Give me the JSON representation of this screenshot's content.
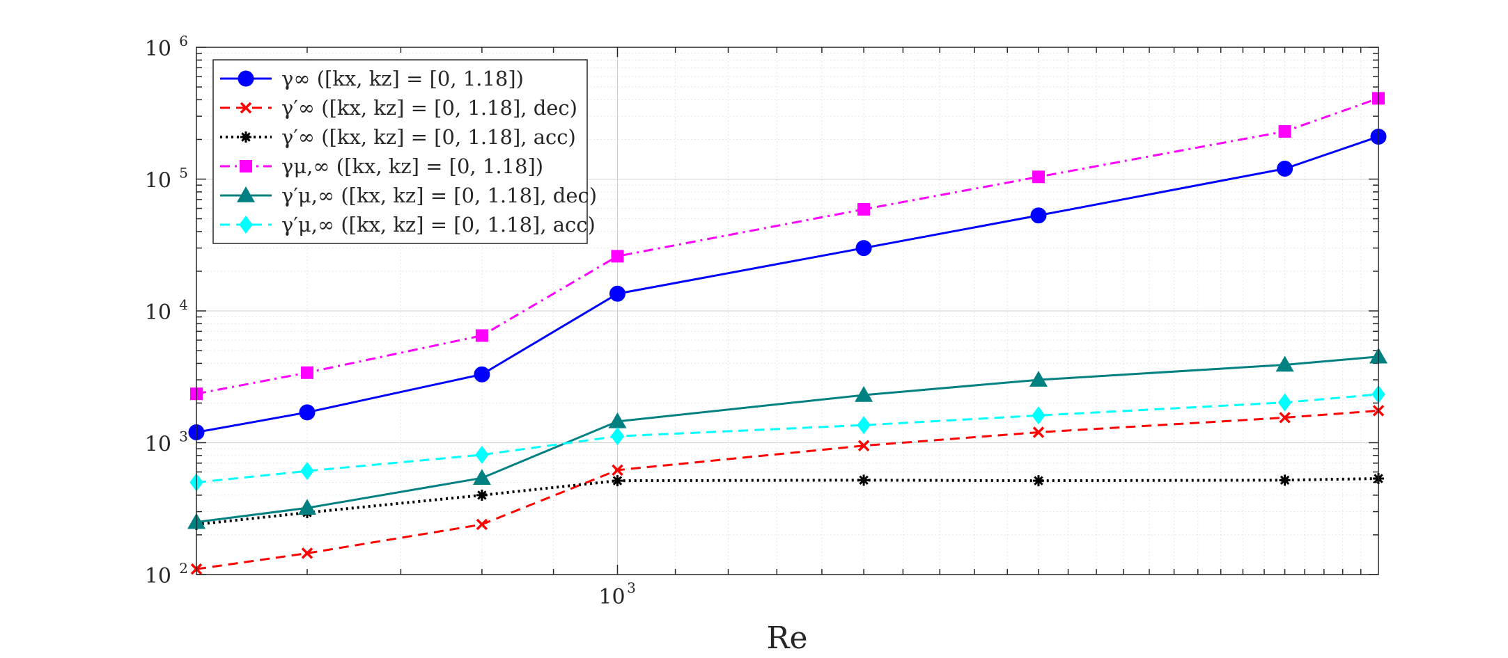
{
  "chart_data": {
    "type": "line",
    "xscale": "log",
    "yscale": "log",
    "xlim": [
      500,
      3500
    ],
    "ylim": [
      100,
      1000000
    ],
    "xlabel": "Re",
    "ylabel": "",
    "title": "",
    "grid": true,
    "minor_grid": true,
    "legend_position": "top-left",
    "x_ticks": [
      {
        "base": "10",
        "exp": "3",
        "value": 1000
      }
    ],
    "y_ticks": [
      {
        "base": "10",
        "exp": "2",
        "value": 100
      },
      {
        "base": "10",
        "exp": "3",
        "value": 1000
      },
      {
        "base": "10",
        "exp": "4",
        "value": 10000
      },
      {
        "base": "10",
        "exp": "5",
        "value": 100000
      },
      {
        "base": "10",
        "exp": "6",
        "value": 1000000
      }
    ],
    "x": [
      500,
      600,
      800,
      1000,
      1500,
      2000,
      3000,
      3500
    ],
    "series": [
      {
        "name": "γ∞ ([kx, kz] = [0, 1.18])",
        "color": "#0000ff",
        "dash": "solid",
        "marker": "circle",
        "values": [
          1200,
          1700,
          3300,
          13500,
          30000,
          53000,
          120000,
          210000
        ]
      },
      {
        "name": "γ′∞ ([kx, kz] = [0, 1.18], dec)",
        "color": "#ff0000",
        "dash": "dashed",
        "marker": "x",
        "values": [
          110,
          145,
          240,
          620,
          950,
          1200,
          1550,
          1750
        ]
      },
      {
        "name": "γ′∞ ([kx, kz] = [0, 1.18], acc)",
        "color": "#000000",
        "dash": "dotted",
        "marker": "asterisk",
        "values": [
          240,
          295,
          400,
          515,
          520,
          515,
          520,
          535
        ]
      },
      {
        "name": "γμ,∞ ([kx, kz] = [0, 1.18])",
        "color": "#ff00ff",
        "dash": "dashdot",
        "marker": "square",
        "values": [
          2350,
          3400,
          6500,
          26000,
          59000,
          104000,
          230000,
          410000
        ]
      },
      {
        "name": "γ′μ,∞ ([kx, kz] = [0, 1.18], dec)",
        "color": "#008080",
        "dash": "solid",
        "marker": "triangle",
        "values": [
          250,
          320,
          540,
          1450,
          2300,
          3000,
          3900,
          4500
        ]
      },
      {
        "name": "γ′μ,∞ ([kx, kz] = [0, 1.18], acc)",
        "color": "#00ffff",
        "dash": "dashed",
        "marker": "diamond",
        "values": [
          500,
          610,
          810,
          1120,
          1360,
          1610,
          2020,
          2330
        ]
      }
    ]
  }
}
